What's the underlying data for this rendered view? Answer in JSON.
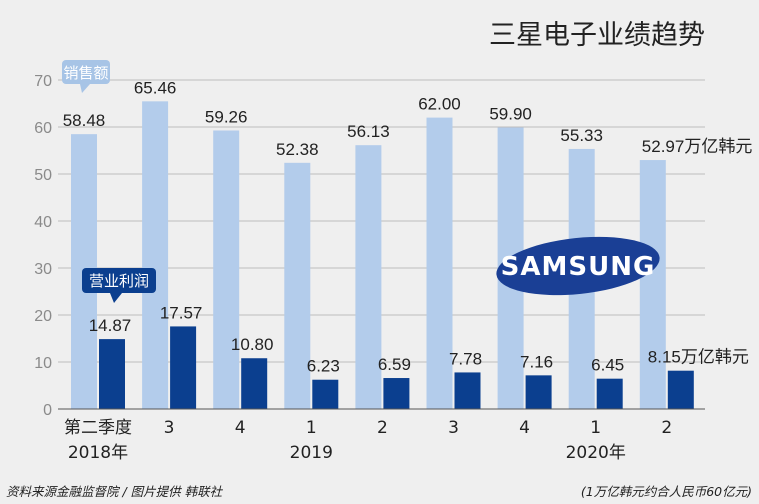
{
  "chart_data": {
    "type": "bar",
    "title": "三星电子业绩趋势",
    "categories": [
      "第二季度",
      "3",
      "4",
      "1",
      "2",
      "3",
      "4",
      "1",
      "2"
    ],
    "year_labels": [
      {
        "index": 0,
        "label": "2018年"
      },
      {
        "index": 3,
        "label": "2019"
      },
      {
        "index": 7,
        "label": "2020年"
      }
    ],
    "series": [
      {
        "name": "销售额",
        "color": "#b3cceb",
        "values": [
          58.48,
          65.46,
          59.26,
          52.38,
          56.13,
          62.0,
          59.9,
          55.33,
          52.97
        ],
        "labels": [
          "58.48",
          "65.46",
          "59.26",
          "52.38",
          "56.13",
          "62.00",
          "59.90",
          "55.33",
          "52.97"
        ]
      },
      {
        "name": "营业利润",
        "color": "#0b3f8f",
        "values": [
          14.87,
          17.57,
          10.8,
          6.23,
          6.59,
          7.78,
          7.16,
          6.45,
          8.15
        ],
        "labels": [
          "14.87",
          "17.57",
          "10.80",
          "6.23",
          "6.59",
          "7.78",
          "7.16",
          "6.45",
          "8.15"
        ]
      }
    ],
    "unit_suffix": "万亿韩元",
    "ylim": [
      0,
      70
    ],
    "yticks": [
      0,
      10,
      20,
      30,
      40,
      50,
      60,
      70
    ],
    "grid": true,
    "logo_icon": "samsung-logo",
    "logo_text": "SAMSUNG",
    "badge_color_sales": "#a7c4e6",
    "badge_color_profit": "#0b3f8f"
  },
  "footer": {
    "source": "资料来源金融监督院 / 图片提供 韩联社",
    "note": "(1万亿韩元约合人民币60亿元)"
  }
}
